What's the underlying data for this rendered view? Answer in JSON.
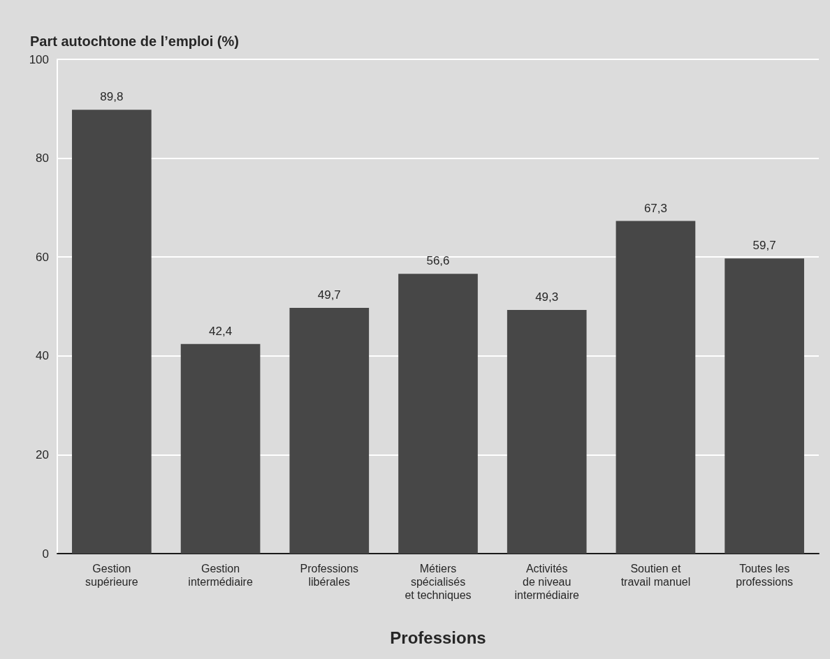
{
  "chart_data": {
    "type": "bar",
    "ylabel": "Part autochtone de l’emploi (%)",
    "xlabel": "Professions",
    "categories": [
      "Gestion\nsupérieure",
      "Gestion\nintermédiaire",
      "Professions\nlibérales",
      "Métiers\nspécialisés\net techniques",
      "Activités\nde niveau\nintermédiaire",
      "Soutien et\ntravail manuel",
      "Toutes les\nprofessions"
    ],
    "values": [
      89.8,
      42.4,
      49.7,
      56.6,
      49.3,
      67.3,
      59.7
    ],
    "value_labels": [
      "89,8",
      "42,4",
      "49,7",
      "56,6",
      "49,3",
      "67,3",
      "59,7"
    ],
    "color": "#474747",
    "ylim": [
      0,
      100
    ],
    "yticks": [
      0,
      20,
      40,
      60,
      80,
      100
    ],
    "grid": "y"
  }
}
